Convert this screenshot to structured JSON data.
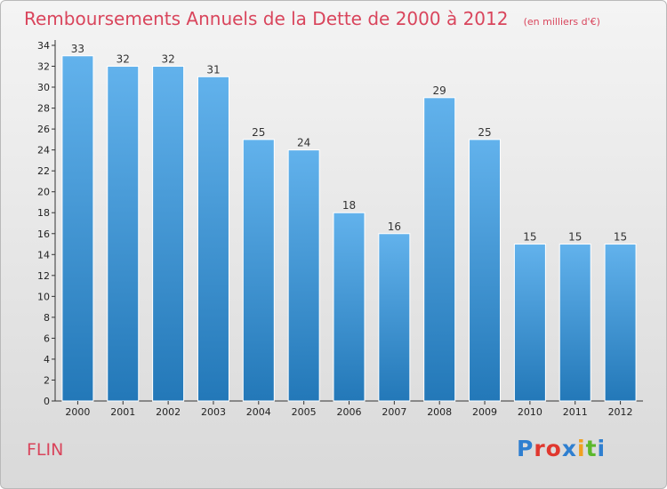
{
  "header": {
    "title": "Remboursements Annuels de la Dette de 2000 à 2012",
    "subtitle": "(en milliers d'€)"
  },
  "footer": {
    "city": "FLIN",
    "logo": "Proxiti"
  },
  "colors": {
    "title": "#d9455c",
    "bar_top": "#62b2ec",
    "bar_bottom": "#2378b8",
    "logo_letters": [
      "#2f7fd0",
      "#e0382f",
      "#e0382f",
      "#2f7fd0",
      "#f0a020",
      "#5cb82c",
      "#2f7fd0"
    ]
  },
  "chart_data": {
    "type": "bar",
    "categories": [
      "2000",
      "2001",
      "2002",
      "2003",
      "2004",
      "2005",
      "2006",
      "2007",
      "2008",
      "2009",
      "2010",
      "2011",
      "2012"
    ],
    "values": [
      33,
      32,
      32,
      31,
      25,
      24,
      18,
      16,
      29,
      25,
      15,
      15,
      15
    ],
    "title": "Remboursements Annuels de la Dette de 2000 à 2012",
    "xlabel": "",
    "ylabel": "",
    "ylim": [
      0,
      34
    ],
    "ytick_step": 2,
    "grid": false,
    "data_labels": true
  }
}
